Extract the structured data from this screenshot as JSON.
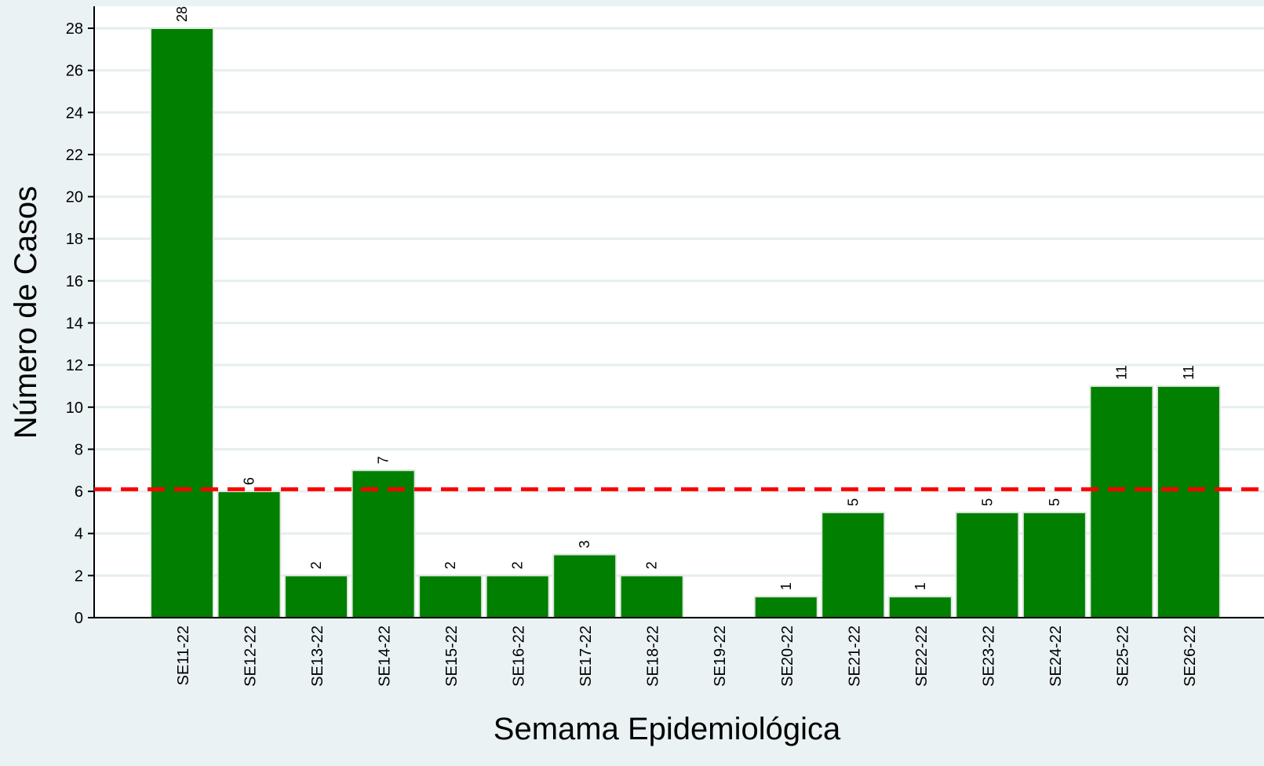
{
  "chart_data": {
    "type": "bar",
    "x_label": "Semama Epidemiológica",
    "y_label": "Número de Casos",
    "categories": [
      "SE11-22",
      "SE12-22",
      "SE13-22",
      "SE14-22",
      "SE15-22",
      "SE16-22",
      "SE17-22",
      "SE18-22",
      "SE19-22",
      "SE20-22",
      "SE21-22",
      "SE22-22",
      "SE23-22",
      "SE24-22",
      "SE25-22",
      "SE26-22"
    ],
    "values": [
      28,
      6,
      2,
      7,
      2,
      2,
      3,
      2,
      null,
      1,
      5,
      1,
      5,
      5,
      11,
      11
    ],
    "color": "#007f00",
    "reference_line": {
      "value": 6.1,
      "color": "#ff0000"
    },
    "ylim": [
      0,
      29
    ],
    "yticks": [
      0,
      2,
      4,
      6,
      8,
      10,
      12,
      14,
      16,
      18,
      20,
      22,
      24,
      26,
      28
    ],
    "grid": true
  }
}
